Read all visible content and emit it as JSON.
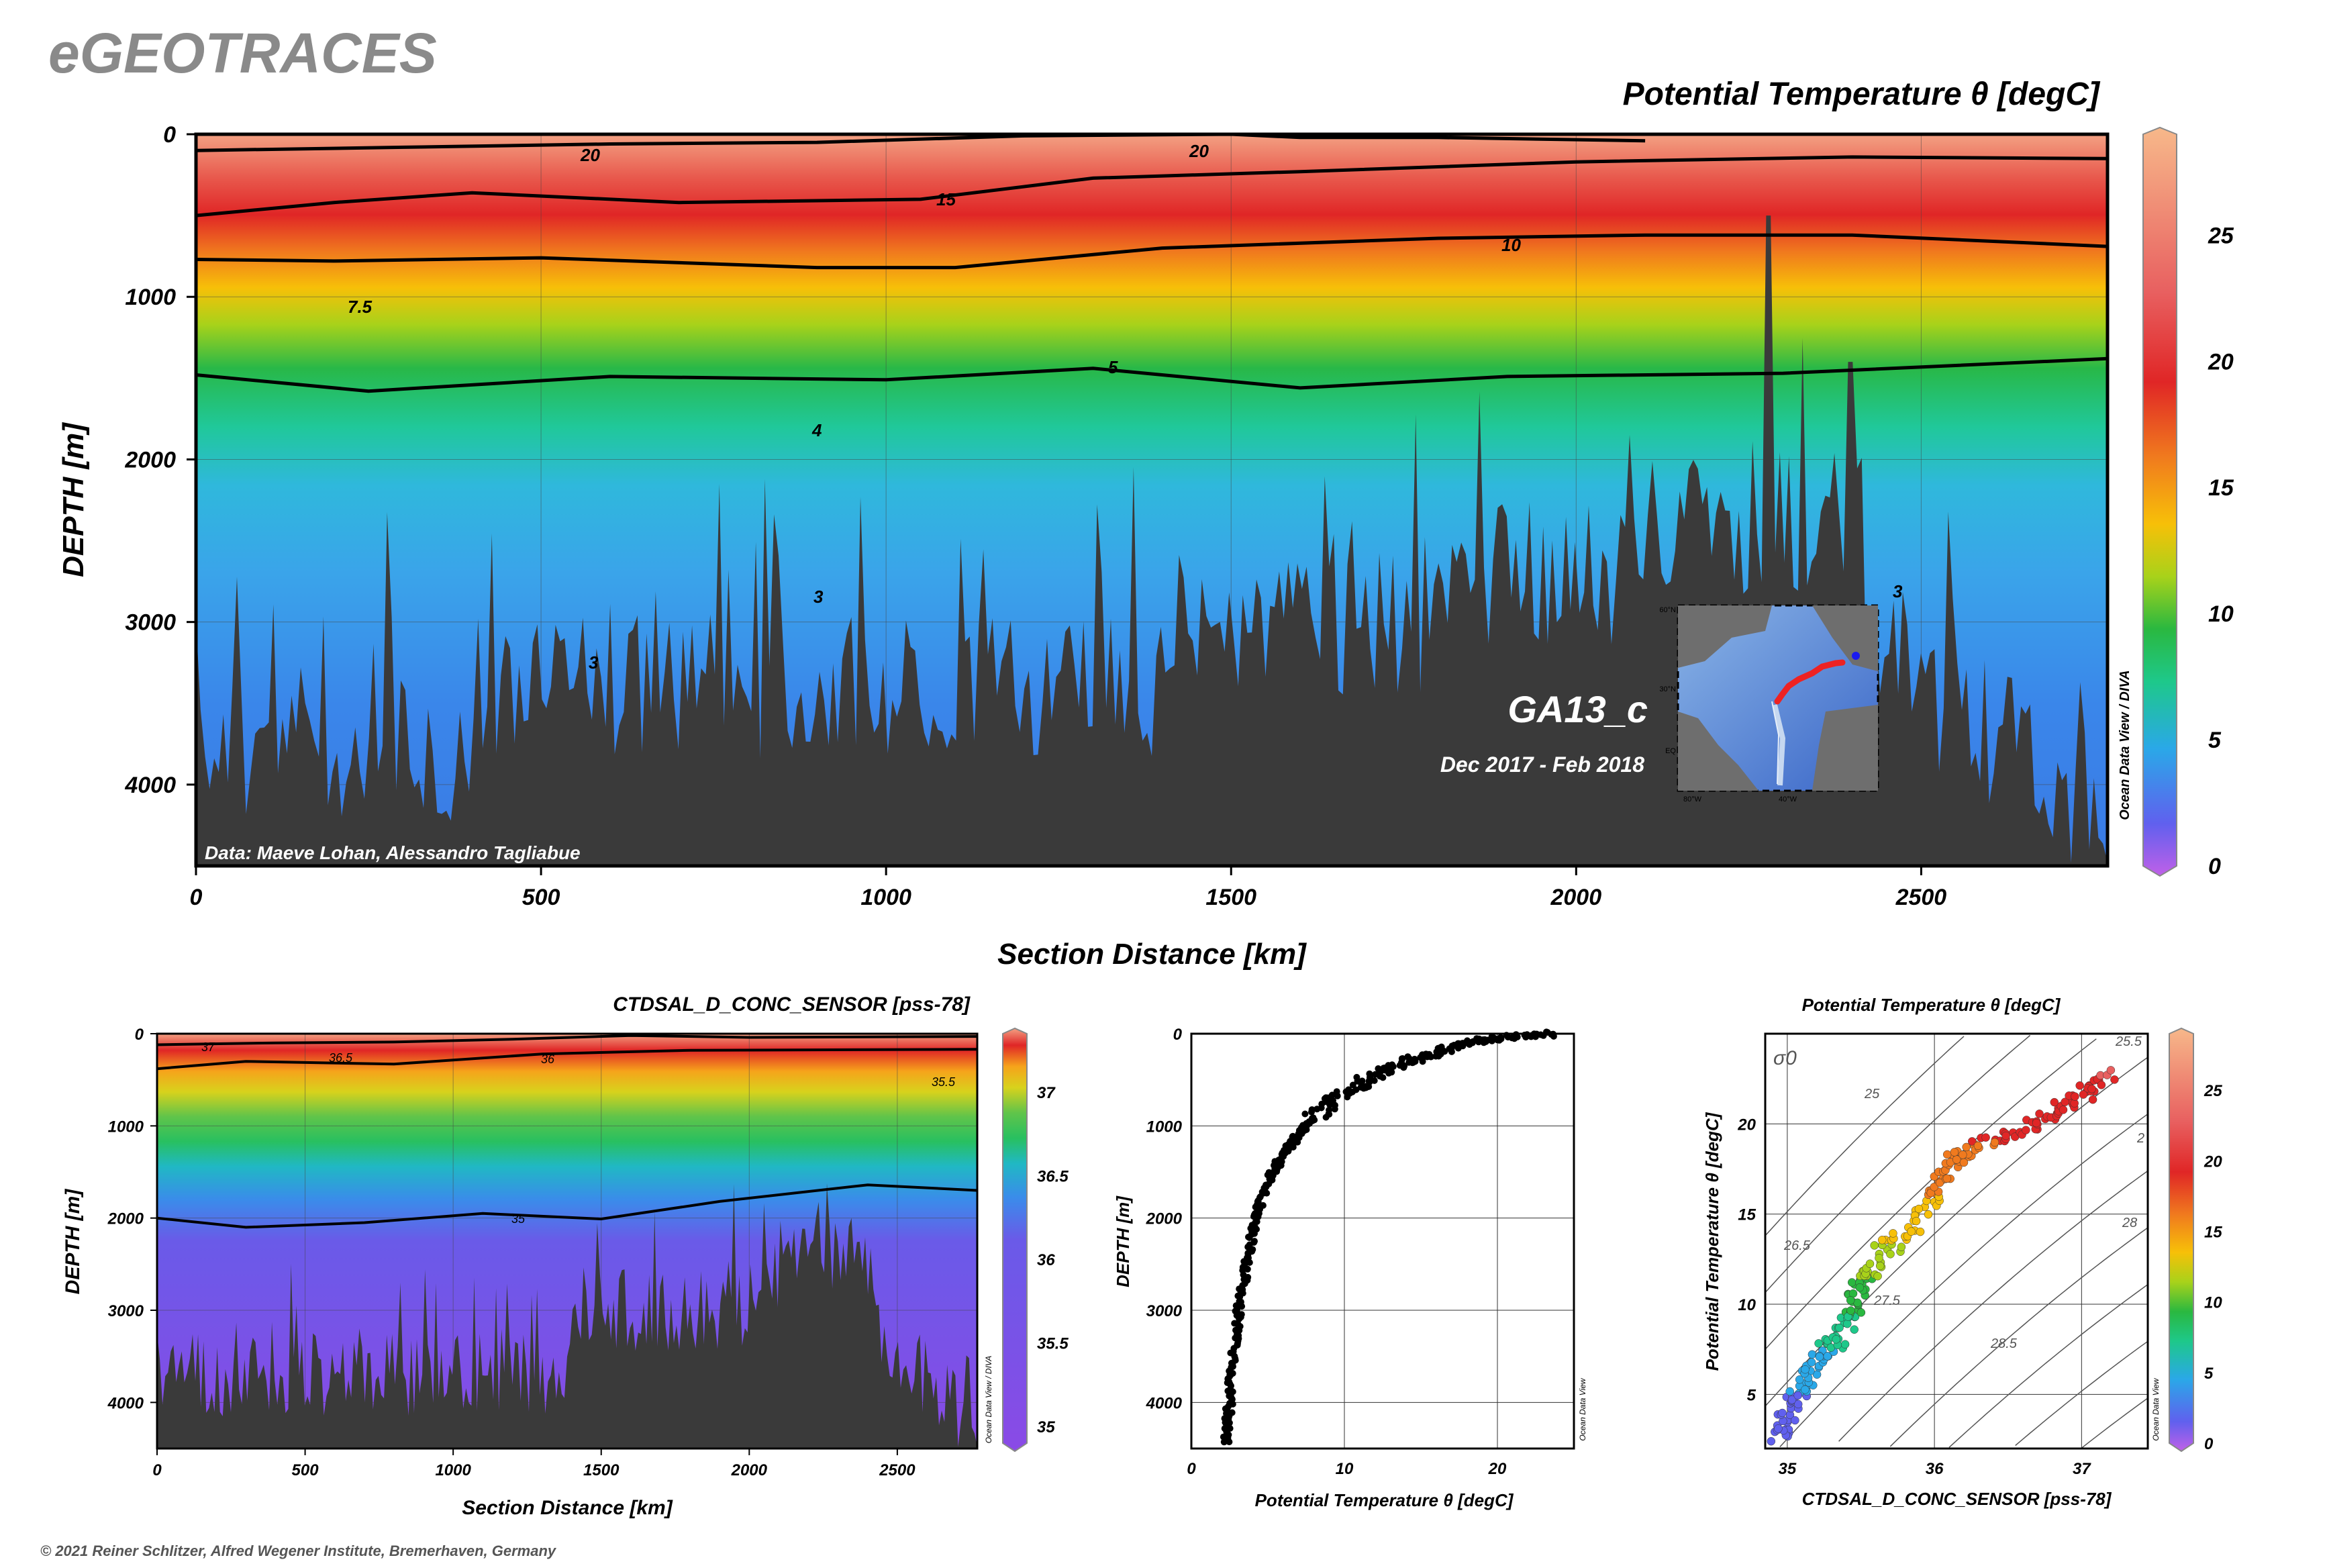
{
  "brand": "eGEOTRACES",
  "copyright": "© 2021 Reiner Schlitzer, Alfred Wegener Institute, Bremerhaven, Germany",
  "colors": {
    "seafloor": "#3a3a3a",
    "background": "#ffffff"
  },
  "chart_data": [
    {
      "id": "main_section",
      "type": "heatmap",
      "title": "Potential Temperature θ [degC]",
      "xlabel": "Section Distance [km]",
      "ylabel": "DEPTH [m]",
      "xlim": [
        0,
        2770
      ],
      "ylim": [
        4500,
        0
      ],
      "x_ticks": [
        "0",
        "500",
        "1000",
        "1500",
        "2000",
        "2500"
      ],
      "y_ticks": [
        "0",
        "1000",
        "2000",
        "3000",
        "4000"
      ],
      "x_tick_values": [
        0,
        500,
        1000,
        1500,
        2000,
        2500
      ],
      "y_tick_values": [
        0,
        1000,
        2000,
        3000,
        4000
      ],
      "colorbar": {
        "label": "Potential Temperature θ [degC]",
        "range": [
          0,
          29
        ],
        "ticks": [
          "0",
          "5",
          "10",
          "15",
          "20",
          "25"
        ],
        "tick_values": [
          0,
          5,
          10,
          15,
          20,
          25
        ]
      },
      "contour_labels": [
        "20",
        "20",
        "15",
        "10",
        "7.5",
        "5",
        "4",
        "3",
        "3",
        "3"
      ],
      "thick_contours": [
        {
          "level": 20,
          "points": [
            [
              0,
              100
            ],
            [
              300,
              80
            ],
            [
              600,
              60
            ],
            [
              900,
              50
            ],
            [
              1200,
              10
            ],
            [
              1500,
              0
            ],
            [
              1600,
              20
            ],
            [
              1800,
              20
            ],
            [
              2100,
              40
            ]
          ]
        },
        {
          "level": 15,
          "points": [
            [
              0,
              500
            ],
            [
              200,
              420
            ],
            [
              400,
              360
            ],
            [
              700,
              420
            ],
            [
              1050,
              400
            ],
            [
              1300,
              270
            ],
            [
              1600,
              230
            ],
            [
              2000,
              170
            ],
            [
              2400,
              140
            ],
            [
              2770,
              150
            ]
          ]
        },
        {
          "level": 10,
          "points": [
            [
              0,
              770
            ],
            [
              200,
              780
            ],
            [
              500,
              760
            ],
            [
              900,
              820
            ],
            [
              1100,
              820
            ],
            [
              1400,
              700
            ],
            [
              1800,
              640
            ],
            [
              2100,
              620
            ],
            [
              2400,
              620
            ],
            [
              2770,
              690
            ]
          ]
        },
        {
          "level": 5,
          "points": [
            [
              0,
              1480
            ],
            [
              250,
              1580
            ],
            [
              600,
              1490
            ],
            [
              1000,
              1510
            ],
            [
              1300,
              1440
            ],
            [
              1600,
              1560
            ],
            [
              1900,
              1490
            ],
            [
              2300,
              1470
            ],
            [
              2770,
              1380
            ]
          ]
        }
      ],
      "credit": "Data: Maeve Lohan, Alessandro Tagliabue",
      "cruise": "GA13_c",
      "dates": "Dec 2017 - Feb 2018",
      "side_label": "Ocean Data View / DIVA",
      "inset_map": {
        "lat_labels": [
          "60°N",
          "30°N",
          "EQ"
        ],
        "lon_labels": [
          "80°W",
          "40°W"
        ]
      }
    },
    {
      "id": "salinity_section",
      "type": "heatmap",
      "title": "CTDSAL_D_CONC_SENSOR [pss-78]",
      "xlabel": "Section Distance [km]",
      "ylabel": "DEPTH [m]",
      "xlim": [
        0,
        2770
      ],
      "ylim": [
        4500,
        0
      ],
      "x_ticks": [
        "0",
        "500",
        "1000",
        "1500",
        "2000",
        "2500"
      ],
      "y_ticks": [
        "0",
        "1000",
        "2000",
        "3000",
        "4000"
      ],
      "x_tick_values": [
        0,
        500,
        1000,
        1500,
        2000,
        2500
      ],
      "y_tick_values": [
        0,
        1000,
        2000,
        3000,
        4000
      ],
      "colorbar": {
        "range": [
          34.9,
          37.35
        ],
        "ticks": [
          "35",
          "35.5",
          "36",
          "36.5",
          "37"
        ],
        "tick_values": [
          35,
          35.5,
          36,
          36.5,
          37
        ]
      },
      "contour_labels": [
        "37",
        "36.5",
        "36",
        "35.5",
        "35"
      ],
      "side_label": "Ocean Data View / DIVA"
    },
    {
      "id": "profile",
      "type": "scatter",
      "xlabel": "Potential Temperature θ [degC]",
      "ylabel": "DEPTH [m]",
      "xlim": [
        0,
        25
      ],
      "ylim": [
        4500,
        0
      ],
      "x_ticks": [
        "0",
        "10",
        "20"
      ],
      "y_ticks": [
        "0",
        "1000",
        "2000",
        "3000",
        "4000"
      ],
      "x_tick_values": [
        0,
        10,
        20
      ],
      "y_tick_values": [
        0,
        1000,
        2000,
        3000,
        4000
      ],
      "side_label": "Ocean Data View",
      "profile_curve": [
        [
          24,
          0
        ],
        [
          20,
          50
        ],
        [
          18,
          100
        ],
        [
          16,
          200
        ],
        [
          14,
          300
        ],
        [
          12,
          450
        ],
        [
          10,
          650
        ],
        [
          8,
          900
        ],
        [
          7,
          1100
        ],
        [
          6,
          1300
        ],
        [
          5,
          1600
        ],
        [
          4.2,
          2000
        ],
        [
          3.6,
          2500
        ],
        [
          3.1,
          3000
        ],
        [
          2.7,
          3500
        ],
        [
          2.5,
          4000
        ],
        [
          2.3,
          4450
        ]
      ]
    },
    {
      "id": "ts_diagram",
      "type": "scatter",
      "title": "Potential Temperature θ [degC]",
      "xlabel": "CTDSAL_D_CONC_SENSOR [pss-78]",
      "ylabel": "Potential Temperature θ [degC]",
      "xlim": [
        34.85,
        37.45
      ],
      "ylim": [
        2,
        25
      ],
      "x_ticks": [
        "35",
        "36",
        "37"
      ],
      "y_ticks": [
        "5",
        "10",
        "15",
        "20"
      ],
      "x_tick_values": [
        35,
        36,
        37
      ],
      "y_tick_values": [
        5,
        10,
        15,
        20
      ],
      "density_labels": [
        "σ0",
        "25",
        "26.5",
        "27.5",
        "28",
        "28.5",
        "25.5",
        "2"
      ],
      "colorbar": {
        "range": [
          0,
          29
        ],
        "ticks": [
          "0",
          "5",
          "10",
          "15",
          "20",
          "25"
        ],
        "tick_values": [
          0,
          5,
          10,
          15,
          20,
          25
        ]
      },
      "side_label": "Ocean Data View",
      "ts_curve": [
        [
          34.95,
          2.5
        ],
        [
          35.0,
          4
        ],
        [
          35.1,
          5.5
        ],
        [
          35.2,
          7
        ],
        [
          35.35,
          8
        ],
        [
          35.45,
          9.5
        ],
        [
          35.5,
          11
        ],
        [
          35.6,
          12.5
        ],
        [
          35.8,
          14
        ],
        [
          36.0,
          16
        ],
        [
          36.1,
          17.5
        ],
        [
          36.2,
          18.5
        ],
        [
          36.5,
          19.5
        ],
        [
          36.8,
          20.5
        ],
        [
          37.0,
          21.5
        ],
        [
          37.2,
          23
        ]
      ]
    }
  ]
}
